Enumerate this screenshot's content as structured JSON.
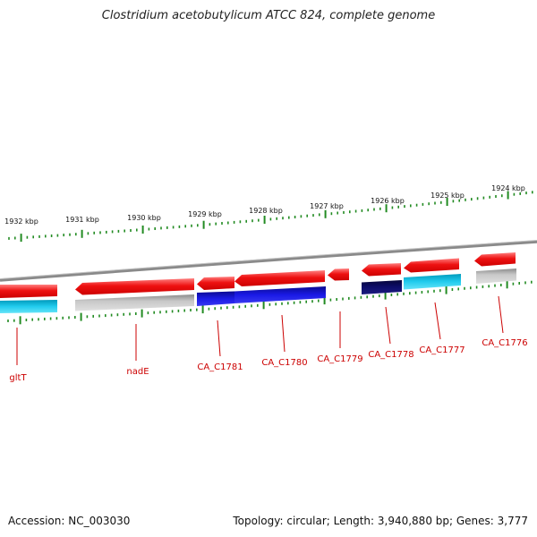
{
  "title": "Clostridium acetobutylicum ATCC 824, complete genome",
  "footer": {
    "accession": "Accession: NC_003030",
    "stats": "Topology: circular; Length: 3,940,880 bp; Genes: 3,777"
  },
  "ruler": {
    "labels": [
      "1932 kbp",
      "1931 kbp",
      "1930 kbp",
      "1929 kbp",
      "1928 kbp",
      "1927 kbp",
      "1926 kbp",
      "1925 kbp",
      "1924 kbp"
    ]
  },
  "genes": [
    {
      "label": "gltT",
      "strand": "forward"
    },
    {
      "label": "nadE",
      "strand": "reverse"
    },
    {
      "label": "CA_C1781",
      "strand": "reverse"
    },
    {
      "label": "CA_C1780",
      "strand": "reverse"
    },
    {
      "label": "CA_C1779",
      "strand": "reverse"
    },
    {
      "label": "CA_C1778",
      "strand": "reverse"
    },
    {
      "label": "CA_C1777",
      "strand": "reverse"
    },
    {
      "label": "CA_C1776",
      "strand": "reverse"
    }
  ],
  "colors": {
    "gene_red": "#ee1111",
    "cds_gray": "#b8b8b8",
    "cds_blue": "#1a1ae6",
    "cds_navy": "#0d0d6b",
    "cds_cyan": "#22ccee",
    "tick_green": "#228b22",
    "backbone": "#888888",
    "label_red": "#cc0000"
  }
}
